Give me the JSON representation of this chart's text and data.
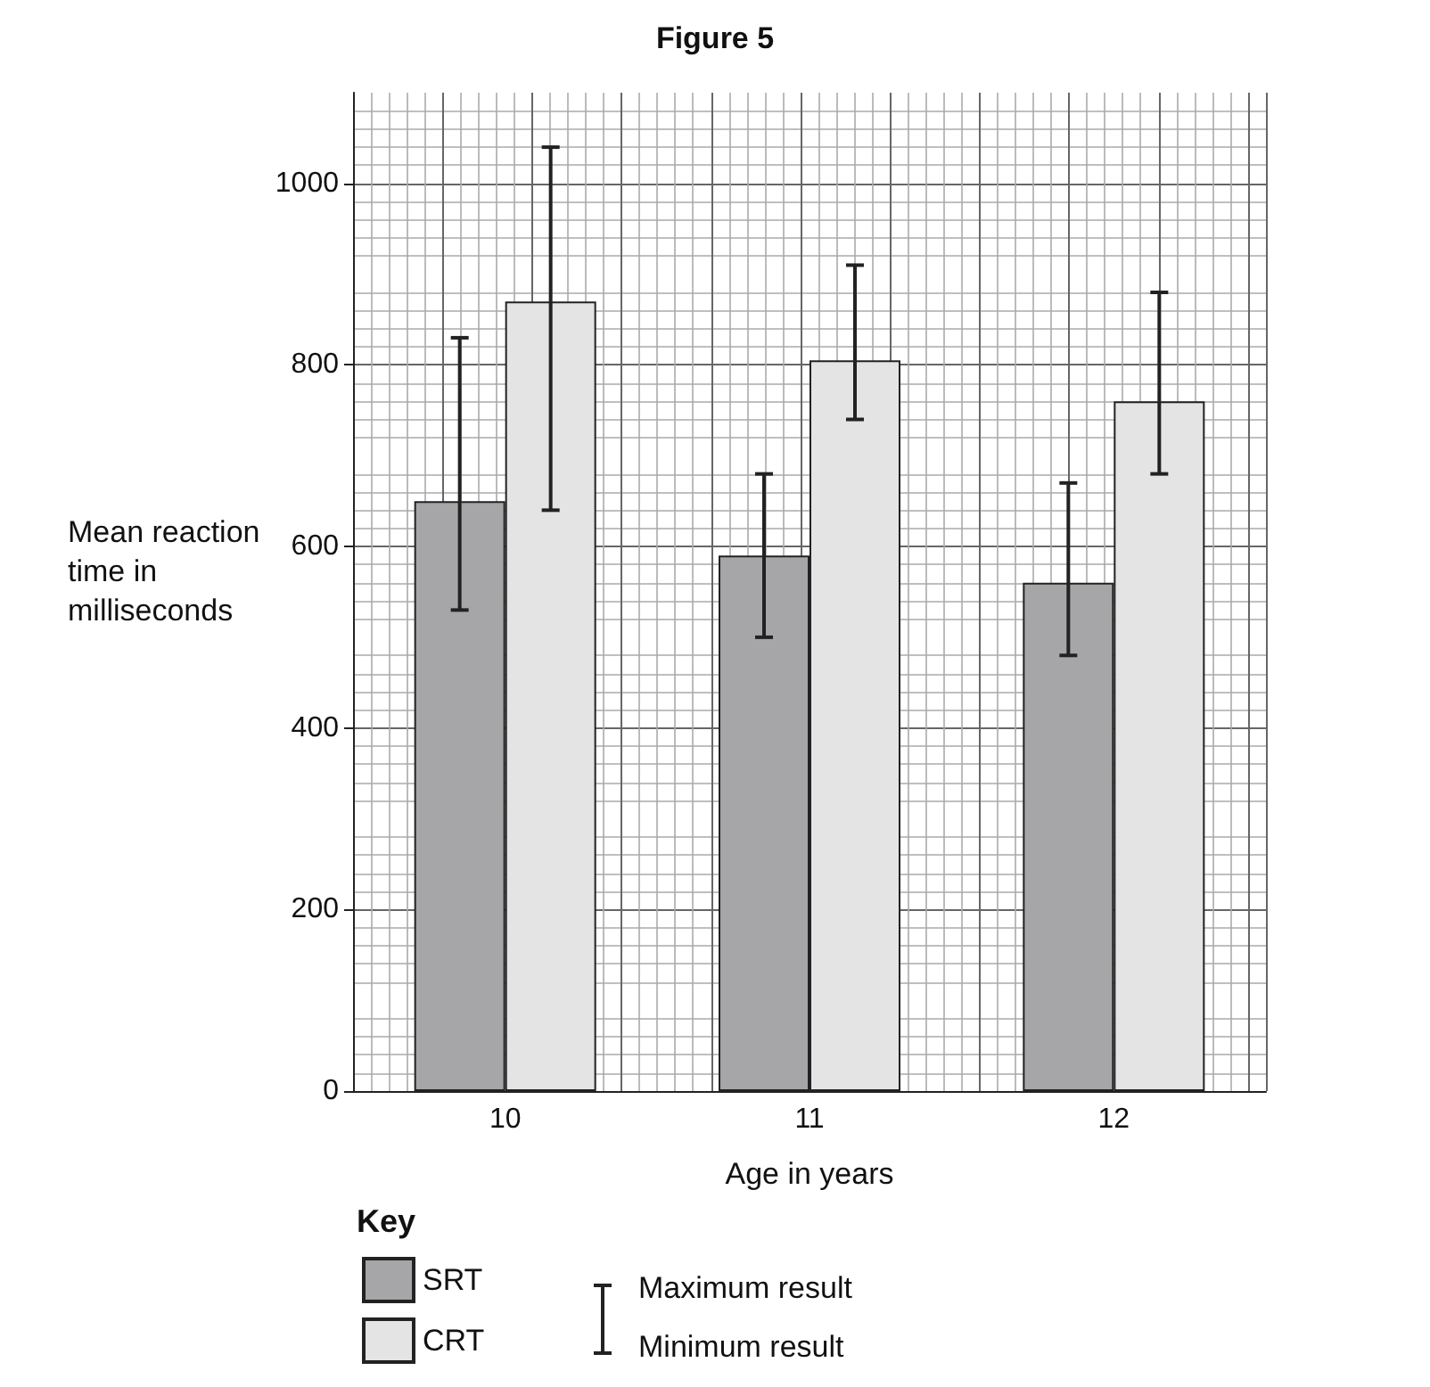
{
  "chart_data": {
    "type": "bar",
    "title": "Figure 5",
    "xlabel": "Age in years",
    "ylabel": "Mean reaction time in milliseconds",
    "legend_title": "Key",
    "categories": [
      "10",
      "11",
      "12"
    ],
    "series": [
      {
        "name": "SRT",
        "color": "#a6a6a8",
        "values": [
          650,
          590,
          560
        ],
        "errors": [
          [
            530,
            830
          ],
          [
            500,
            680
          ],
          [
            480,
            670
          ]
        ]
      },
      {
        "name": "CRT",
        "color": "#e4e4e5",
        "values": [
          870,
          805,
          760
        ],
        "errors": [
          [
            640,
            1040
          ],
          [
            740,
            910
          ],
          [
            680,
            880
          ]
        ]
      }
    ],
    "ylim": [
      0,
      1100
    ],
    "yticks": [
      0,
      200,
      400,
      600,
      800,
      1000
    ],
    "grid": true,
    "legend": "bottom left",
    "annotations": [
      "Maximum result",
      "Minimum result"
    ]
  }
}
